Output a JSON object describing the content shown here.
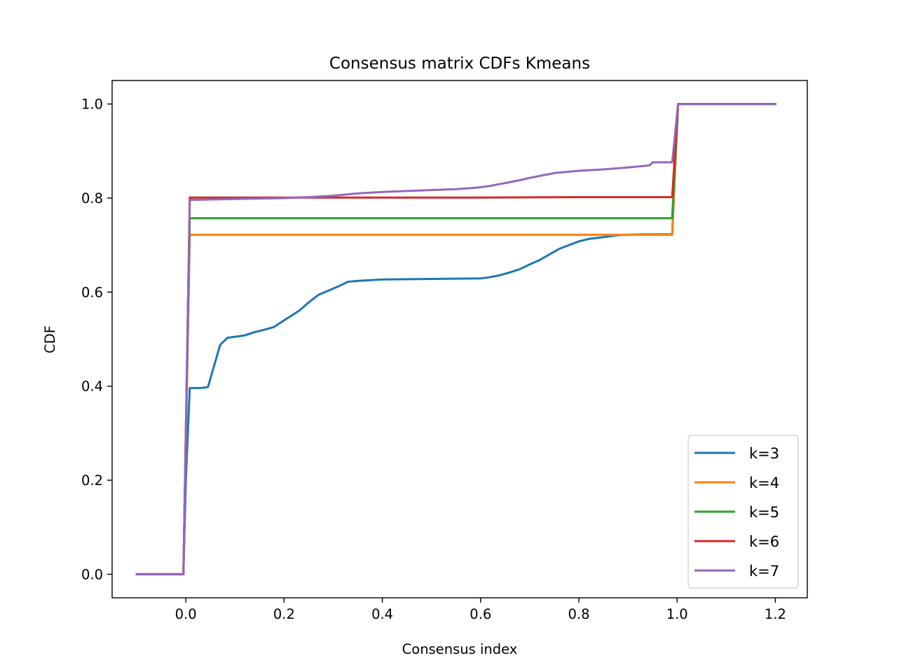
{
  "chart_data": {
    "type": "line",
    "title": "Consensus matrix CDFs Kmeans",
    "xlabel": "Consensus index",
    "ylabel": "CDF",
    "xlim": [
      -0.15,
      1.265
    ],
    "ylim": [
      -0.05,
      1.05
    ],
    "xticks": [
      0.0,
      0.2,
      0.4,
      0.6,
      0.8,
      1.0,
      1.2
    ],
    "xtick_labels": [
      "0.0",
      "0.2",
      "0.4",
      "0.6",
      "0.8",
      "1.0",
      "1.2"
    ],
    "yticks": [
      0.0,
      0.2,
      0.4,
      0.6,
      0.8,
      1.0
    ],
    "ytick_labels": [
      "0.0",
      "0.2",
      "0.4",
      "0.6",
      "0.8",
      "1.0"
    ],
    "legend_position": "lower-right",
    "series": [
      {
        "name": "k=3",
        "color": "#1f77b4",
        "x": [
          -0.1,
          -0.005,
          0.0,
          0.008,
          0.03,
          0.045,
          0.07,
          0.085,
          0.1,
          0.12,
          0.14,
          0.16,
          0.18,
          0.2,
          0.23,
          0.25,
          0.27,
          0.29,
          0.31,
          0.33,
          0.35,
          0.4,
          0.5,
          0.6,
          0.62,
          0.64,
          0.66,
          0.68,
          0.7,
          0.72,
          0.74,
          0.76,
          0.78,
          0.8,
          0.82,
          0.85,
          0.88,
          0.9,
          0.93,
          0.96,
          0.99,
          1.002,
          1.05,
          1.2
        ],
        "y": [
          0.0,
          0.0,
          0.2,
          0.396,
          0.396,
          0.398,
          0.488,
          0.503,
          0.505,
          0.508,
          0.515,
          0.52,
          0.526,
          0.54,
          0.56,
          0.578,
          0.594,
          0.603,
          0.612,
          0.622,
          0.624,
          0.627,
          0.628,
          0.629,
          0.632,
          0.636,
          0.642,
          0.649,
          0.659,
          0.668,
          0.68,
          0.692,
          0.7,
          0.708,
          0.713,
          0.717,
          0.721,
          0.722,
          0.723,
          0.723,
          0.723,
          1.0,
          1.0,
          1.0
        ]
      },
      {
        "name": "k=4",
        "color": "#ff7f0e",
        "x": [
          -0.1,
          -0.005,
          0.008,
          0.99,
          1.002,
          1.2
        ],
        "y": [
          0.0,
          0.0,
          0.722,
          0.722,
          1.0,
          1.0
        ]
      },
      {
        "name": "k=5",
        "color": "#2ca02c",
        "x": [
          -0.1,
          -0.005,
          0.008,
          0.99,
          1.002,
          1.2
        ],
        "y": [
          0.0,
          0.0,
          0.757,
          0.757,
          1.0,
          1.0
        ]
      },
      {
        "name": "k=6",
        "color": "#d62728",
        "x": [
          -0.1,
          -0.005,
          0.008,
          0.3,
          0.6,
          0.8,
          0.99,
          1.002,
          1.2
        ],
        "y": [
          0.0,
          0.0,
          0.801,
          0.801,
          0.801,
          0.802,
          0.802,
          1.0,
          1.0
        ]
      },
      {
        "name": "k=7",
        "color": "#9467bd",
        "x": [
          -0.1,
          -0.005,
          0.008,
          0.1,
          0.2,
          0.25,
          0.3,
          0.33,
          0.35,
          0.4,
          0.45,
          0.5,
          0.55,
          0.58,
          0.6,
          0.62,
          0.64,
          0.66,
          0.68,
          0.7,
          0.72,
          0.75,
          0.78,
          0.8,
          0.85,
          0.9,
          0.93,
          0.945,
          0.95,
          0.99,
          1.002,
          1.2
        ],
        "y": [
          0.0,
          0.0,
          0.796,
          0.798,
          0.8,
          0.802,
          0.805,
          0.808,
          0.81,
          0.813,
          0.815,
          0.817,
          0.819,
          0.821,
          0.823,
          0.826,
          0.83,
          0.834,
          0.838,
          0.843,
          0.847,
          0.853,
          0.856,
          0.858,
          0.861,
          0.865,
          0.868,
          0.87,
          0.876,
          0.876,
          1.0,
          1.0
        ]
      }
    ]
  }
}
